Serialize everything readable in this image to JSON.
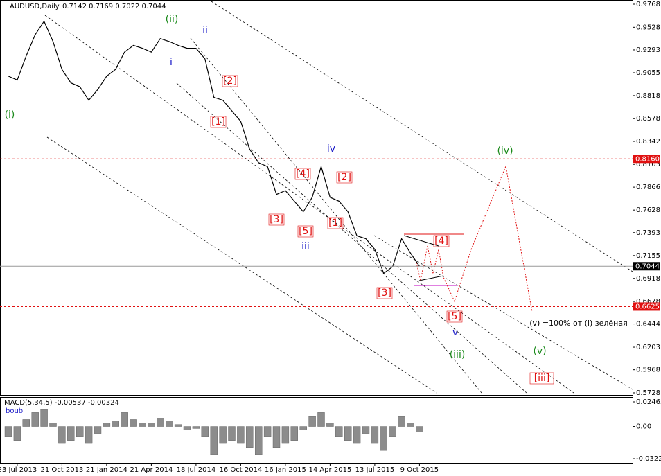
{
  "chart_data": [
    {
      "type": "line",
      "title": "AUDUSD,Daily",
      "subtitle": "0.7142 0.7169 0.7022 0.7044",
      "color": "#000000",
      "values": [
        0.902,
        0.898,
        0.923,
        0.945,
        0.959,
        0.938,
        0.909,
        0.895,
        0.891,
        0.877,
        0.888,
        0.902,
        0.909,
        0.927,
        0.934,
        0.931,
        0.927,
        0.941,
        0.938,
        0.934,
        0.931,
        0.931,
        0.92,
        0.88,
        0.877,
        0.866,
        0.855,
        0.826,
        0.812,
        0.808,
        0.779,
        0.783,
        0.772,
        0.761,
        0.776,
        0.808,
        0.776,
        0.772,
        0.761,
        0.736,
        0.733,
        0.722,
        0.697,
        0.704,
        0.733,
        0.718,
        0.7044,
        null,
        null,
        null,
        null,
        null,
        null,
        null,
        null,
        null,
        null,
        null,
        null,
        null,
        null,
        null,
        null,
        null,
        null,
        null,
        null,
        null,
        null,
        null
      ],
      "ylim": [
        0.5728,
        0.9768
      ],
      "yticks": [
        0.9768,
        0.9528,
        0.9293,
        0.9055,
        0.8818,
        0.8578,
        0.8342,
        0.8103,
        0.7866,
        0.7628,
        0.7393,
        0.7155,
        0.6918,
        0.6678,
        0.6444,
        0.6203,
        0.5968,
        0.5728
      ],
      "levels": [
        {
          "value": 0.816,
          "label": "0.8160",
          "color": "#e01010"
        },
        {
          "value": 0.6625,
          "label": "0.6625",
          "color": "#e01010"
        },
        {
          "value": 0.7044,
          "label": "0.7044",
          "color": "#000000"
        }
      ],
      "annotations": [
        "(ii)",
        "ii",
        "i",
        "(i)",
        "[2]",
        "[1]",
        "iv",
        "[4]",
        "[2]",
        "[3]",
        "[5]",
        "iii",
        "[1]",
        "[4]",
        "[3]",
        "[5]",
        "v",
        "(iii)",
        "(iv)",
        "(v)",
        "[iii]",
        "(v) =100% от (i) зелёная"
      ]
    },
    {
      "type": "bar",
      "title": "MACD(5,34,5) -0.00537 -0.00324",
      "subtitle": "boubi",
      "color": "#8c8c8c",
      "categories": [
        null,
        "23 Jul 2013",
        null,
        null,
        null,
        null,
        "21 Oct 2013",
        null,
        null,
        null,
        null,
        "21 Jan 2014",
        null,
        null,
        null,
        null,
        "21 Apr 2014",
        null,
        null,
        null,
        null,
        "18 Jul 2014",
        null,
        null,
        null,
        null,
        "16 Oct 2014",
        null,
        null,
        null,
        null,
        "16 Jan 2015",
        null,
        null,
        null,
        null,
        "14 Apr 2015",
        null,
        null,
        null,
        null,
        "13 Jul 2015",
        null,
        null,
        null,
        null,
        "9 Oct 2015",
        null,
        null,
        null,
        null,
        null,
        null,
        null,
        null,
        null,
        null,
        null,
        null,
        null,
        null,
        null,
        null,
        null,
        null,
        null,
        null,
        null,
        null,
        null
      ],
      "values": [
        -0.01,
        -0.014,
        0.007,
        0.014,
        0.017,
        0.0035,
        -0.017,
        -0.014,
        -0.01,
        -0.017,
        -0.007,
        0.0035,
        0.0055,
        0.014,
        0.007,
        0.0035,
        0.0035,
        0.0085,
        0.0055,
        0.002,
        -0.0035,
        -0.002,
        -0.01,
        -0.028,
        -0.017,
        -0.014,
        -0.017,
        -0.021,
        -0.028,
        -0.01,
        -0.021,
        -0.017,
        -0.014,
        -0.0035,
        0.01,
        0.014,
        0.0035,
        -0.01,
        -0.014,
        -0.017,
        -0.007,
        -0.017,
        -0.024,
        -0.01,
        0.01,
        0.0035,
        -0.00537,
        null,
        null,
        null,
        null,
        null,
        null,
        null,
        null,
        null,
        null,
        null,
        null,
        null,
        null,
        null,
        null,
        null,
        null,
        null,
        null,
        null,
        null,
        null
      ],
      "ylim": [
        -0.03222,
        0.02465
      ],
      "yticks": [
        0.02465,
        {
          "value": 0,
          "label": "0.00"
        },
        -0.03222
      ]
    }
  ]
}
